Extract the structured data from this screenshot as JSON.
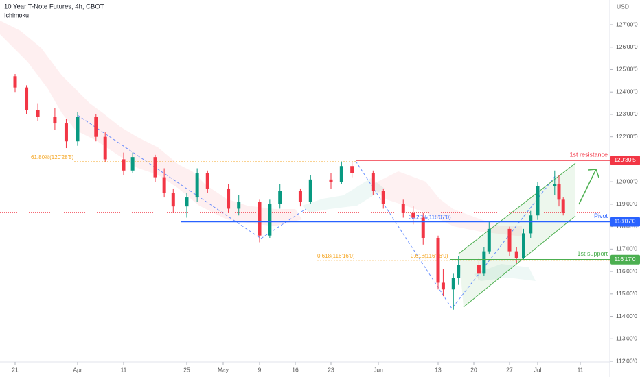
{
  "chart_data": {
    "type": "candlestick",
    "title": "10 Year T-Note Futures, 4h, CBOT",
    "indicator": "Ichimoku",
    "y_unit": "USD",
    "up_color": "#089981",
    "down_color": "#f23645",
    "x": [
      "03-17",
      "03-21",
      "03-23",
      "03-25",
      "03-28",
      "03-30",
      "04-01",
      "04-05",
      "04-07",
      "04-11",
      "04-13",
      "04-18",
      "04-20",
      "04-22",
      "04-25",
      "04-27",
      "04-29",
      "05-03",
      "05-05",
      "05-09",
      "05-11",
      "05-13",
      "05-17",
      "05-19",
      "05-23",
      "05-25",
      "05-27",
      "05-31",
      "06-02",
      "06-06",
      "06-08",
      "06-10",
      "06-13",
      "06-14",
      "06-16",
      "06-17",
      "06-21",
      "06-22",
      "06-23",
      "06-27",
      "06-28",
      "06-29",
      "06-30",
      "07-01",
      "07-05",
      "07-06",
      "07-07"
    ],
    "open": [
      124.5,
      124.7,
      124.2,
      123.2,
      122.9,
      122.6,
      121.8,
      122.9,
      122.0,
      121.0,
      120.5,
      121.1,
      120.2,
      119.5,
      118.9,
      119.3,
      120.4,
      119.7,
      118.8,
      119.1,
      117.6,
      119.0,
      119.6,
      119.1,
      120.1,
      120.0,
      120.7,
      120.4,
      119.6,
      119.0,
      118.6,
      118.4,
      117.5,
      115.5,
      115.2,
      115.7,
      116.3,
      115.9,
      116.9,
      117.9,
      116.9,
      116.6,
      117.7,
      118.5,
      119.8,
      119.9,
      119.2
    ],
    "high": [
      124.9,
      124.8,
      124.3,
      123.5,
      123.3,
      122.8,
      123.1,
      123.0,
      122.2,
      121.3,
      121.3,
      121.2,
      120.6,
      119.7,
      119.5,
      120.6,
      120.5,
      119.9,
      119.4,
      119.2,
      119.2,
      119.9,
      119.7,
      120.3,
      120.4,
      120.9,
      120.9,
      120.5,
      119.7,
      119.2,
      118.9,
      118.6,
      117.6,
      116.1,
      115.9,
      116.7,
      116.6,
      117.1,
      118.2,
      118.0,
      117.1,
      117.9,
      118.7,
      120.0,
      120.5,
      120.3,
      119.3
    ],
    "low": [
      124.2,
      124.0,
      123.0,
      122.7,
      122.3,
      121.5,
      121.6,
      121.8,
      120.9,
      120.3,
      120.4,
      120.0,
      119.3,
      118.6,
      118.4,
      119.1,
      119.5,
      118.6,
      118.5,
      117.3,
      117.5,
      118.8,
      118.9,
      119.0,
      119.7,
      119.9,
      120.2,
      119.4,
      118.8,
      118.4,
      118.1,
      117.2,
      115.2,
      114.9,
      114.3,
      115.4,
      115.6,
      115.8,
      116.8,
      116.7,
      116.4,
      116.5,
      117.5,
      118.3,
      119.4,
      118.9,
      118.5
    ],
    "close": [
      124.7,
      124.2,
      123.2,
      122.9,
      122.6,
      121.8,
      122.9,
      122.0,
      121.0,
      120.5,
      121.1,
      120.2,
      119.5,
      118.9,
      119.3,
      120.4,
      119.7,
      118.8,
      119.1,
      117.6,
      119.0,
      119.6,
      119.1,
      120.1,
      120.0,
      120.7,
      120.4,
      119.6,
      119.0,
      118.6,
      118.4,
      117.5,
      115.5,
      115.2,
      115.7,
      116.3,
      115.9,
      116.9,
      117.9,
      116.9,
      116.6,
      117.7,
      118.5,
      119.8,
      119.9,
      119.2,
      118.6
    ],
    "ylim": [
      111.97,
      128.1
    ],
    "yticks": [
      {
        "value": 112,
        "label": "112'00'0"
      },
      {
        "value": 113,
        "label": "113'00'0"
      },
      {
        "value": 114,
        "label": "114'00'0"
      },
      {
        "value": 115,
        "label": "115'00'0"
      },
      {
        "value": 116,
        "label": "116'00'0"
      },
      {
        "value": 117,
        "label": "117'00'0"
      },
      {
        "value": 118,
        "label": "118'00'0"
      },
      {
        "value": 119,
        "label": "119'00'0"
      },
      {
        "value": 120,
        "label": "120'00'0"
      },
      {
        "value": 121,
        "label": "121'00'0"
      },
      {
        "value": 122,
        "label": "122'00'0"
      },
      {
        "value": 123,
        "label": "123'00'0"
      },
      {
        "value": 124,
        "label": "124'00'0"
      },
      {
        "value": 125,
        "label": "125'00'0"
      },
      {
        "value": 126,
        "label": "126'00'0"
      },
      {
        "value": 127,
        "label": "127'00'0"
      }
    ],
    "xticks": [
      {
        "value": "03-21",
        "label": "21"
      },
      {
        "value": "04-01",
        "label": "Apr"
      },
      {
        "value": "04-11",
        "label": "11"
      },
      {
        "value": "04-25",
        "label": "25"
      },
      {
        "value": "05-02",
        "label": "May"
      },
      {
        "value": "05-09",
        "label": "9"
      },
      {
        "value": "05-16",
        "label": "16"
      },
      {
        "value": "05-23",
        "label": "23"
      },
      {
        "value": "06-01",
        "label": "Jun"
      },
      {
        "value": "06-13",
        "label": "13"
      },
      {
        "value": "06-20",
        "label": "20"
      },
      {
        "value": "06-27",
        "label": "27"
      },
      {
        "value": "07-01",
        "label": "Jul"
      },
      {
        "value": "07-11",
        "label": "11"
      }
    ],
    "levels": [
      {
        "name": "1st resistance",
        "value": 120.953,
        "label": "120'30'5",
        "color": "#f23645"
      },
      {
        "name": "Pivot",
        "value": 118.219,
        "label": "118'07'0",
        "color": "#2962ff"
      },
      {
        "name": "1st support",
        "value": 116.531,
        "label": "116'17'0",
        "color": "#4caf50"
      }
    ],
    "fib_levels": [
      {
        "text": "61.80%(120'28'5)",
        "value": 120.89
      },
      {
        "text": "38.20%(118'07'0)",
        "value": 118.22
      },
      {
        "text": "0.618(116'16'0)",
        "value": 116.5
      },
      {
        "text": "0.618(116'16'0)",
        "value": 116.5
      }
    ],
    "last_price": 118.62
  }
}
